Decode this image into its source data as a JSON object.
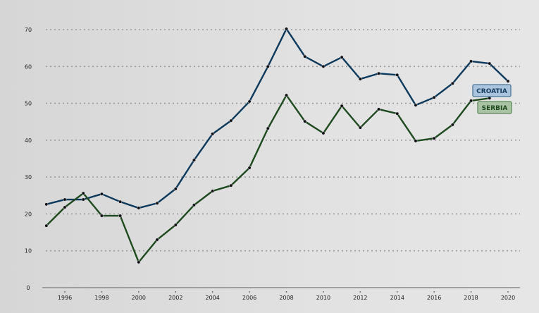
{
  "chart_data": {
    "type": "line",
    "title": "",
    "xlabel": "",
    "ylabel": "",
    "xlim": [
      1995,
      2020
    ],
    "ylim": [
      0,
      70
    ],
    "grid": true,
    "yticks": [
      0,
      10,
      20,
      30,
      40,
      50,
      60,
      70
    ],
    "xticks": [
      1996,
      1998,
      2000,
      2002,
      2004,
      2006,
      2008,
      2010,
      2012,
      2014,
      2016,
      2018,
      2020
    ],
    "colors": {
      "croatia": "#0d3a5c",
      "serbia": "#1f4a1f",
      "grid": "#9a9a9a",
      "axis": "#8a8a8a"
    },
    "series": [
      {
        "name": "CROATIA",
        "x": [
          1995,
          1996,
          1997,
          1998,
          1999,
          2000,
          2001,
          2002,
          2003,
          2004,
          2005,
          2006,
          2007,
          2008,
          2009,
          2010,
          2011,
          2012,
          2013,
          2014,
          2015,
          2016,
          2017,
          2018,
          2019,
          2020
        ],
        "values": [
          22.6,
          23.9,
          23.9,
          25.4,
          23.3,
          21.6,
          22.9,
          26.8,
          34.6,
          41.7,
          45.3,
          50.5,
          60.0,
          70.2,
          62.7,
          60.0,
          62.5,
          56.6,
          58.1,
          57.7,
          49.5,
          51.6,
          55.4,
          61.4,
          60.8,
          56.0
        ],
        "label_fill": "#a9c4dc",
        "label_border": "#4a7598",
        "label_text": "#163c5e"
      },
      {
        "name": "SERBIA",
        "x": [
          1995,
          1996,
          1997,
          1998,
          1999,
          2000,
          2001,
          2002,
          2003,
          2004,
          2005,
          2006,
          2007,
          2008,
          2009,
          2010,
          2011,
          2012,
          2013,
          2014,
          2015,
          2016,
          2017,
          2018,
          2019
        ],
        "values": [
          16.8,
          21.8,
          25.6,
          19.5,
          19.5,
          6.9,
          13.0,
          17.0,
          22.4,
          26.2,
          27.7,
          32.5,
          43.2,
          52.2,
          45.1,
          41.9,
          49.3,
          43.4,
          48.4,
          47.2,
          39.8,
          40.5,
          44.2,
          50.7,
          51.4
        ],
        "label_fill": "#a9c2a4",
        "label_border": "#5f8a5a",
        "label_text": "#1f4a1f"
      }
    ],
    "legend": "inline-right"
  }
}
